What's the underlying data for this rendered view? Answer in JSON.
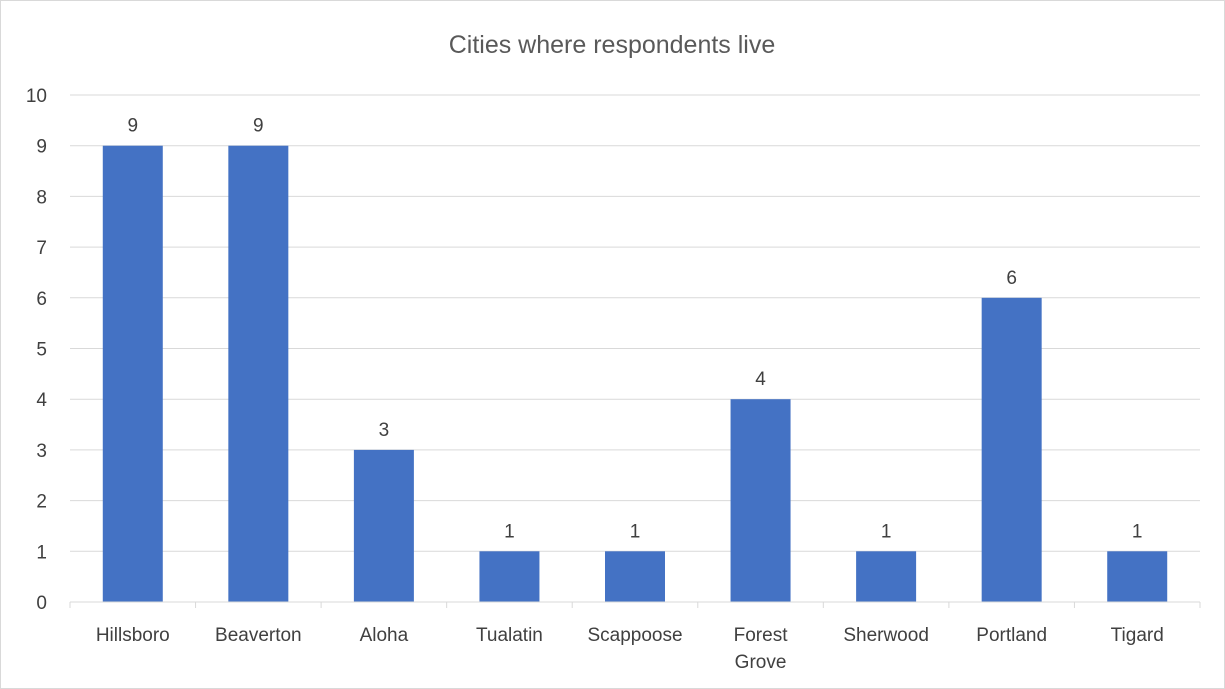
{
  "chart_data": {
    "type": "bar",
    "title": "Cities where respondents live",
    "categories": [
      "Hillsboro",
      "Beaverton",
      "Aloha",
      "Tualatin",
      "Scappoose",
      "Forest Grove",
      "Sherwood",
      "Portland",
      "Tigard"
    ],
    "category_lines": [
      [
        "Hillsboro"
      ],
      [
        "Beaverton"
      ],
      [
        "Aloha"
      ],
      [
        "Tualatin"
      ],
      [
        "Scappoose"
      ],
      [
        "Forest",
        "Grove"
      ],
      [
        "Sherwood"
      ],
      [
        "Portland"
      ],
      [
        "Tigard"
      ]
    ],
    "values": [
      9,
      9,
      3,
      1,
      1,
      4,
      1,
      6,
      1
    ],
    "data_labels": [
      "9",
      "9",
      "3",
      "1",
      "1",
      "4",
      "1",
      "6",
      "1"
    ],
    "ylim": [
      0,
      10
    ],
    "yticks": [
      "0",
      "1",
      "2",
      "3",
      "4",
      "5",
      "6",
      "7",
      "8",
      "9",
      "10"
    ],
    "xlabel": "",
    "ylabel": "",
    "grid": true,
    "legend": "none",
    "colors": {
      "bar": "#4472c4",
      "grid": "#d9d9d9",
      "text": "#404040",
      "title": "#595959"
    }
  }
}
